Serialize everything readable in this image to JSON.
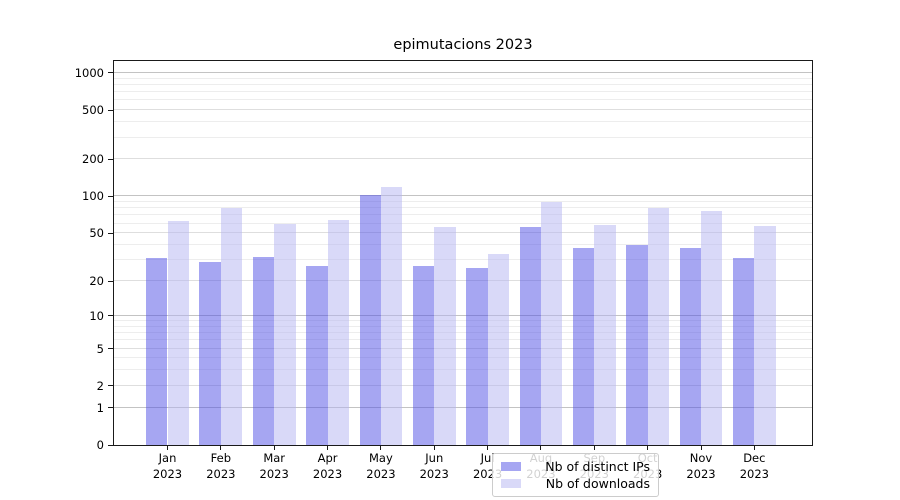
{
  "chart_data": {
    "type": "bar",
    "title": "epimutacions 2023",
    "categories": [
      "Jan 2023",
      "Feb 2023",
      "Mar 2023",
      "Apr 2023",
      "May 2023",
      "Jun 2023",
      "Jul 2023",
      "Aug 2023",
      "Sep 2023",
      "Oct 2023",
      "Nov 2023",
      "Dec 2023"
    ],
    "series": [
      {
        "name": "Nb of distinct IPs",
        "color": "#a6a6f2",
        "fill": "rgba(77,77,229,0.5)",
        "values": [
          31,
          29,
          32,
          27,
          103,
          27,
          26,
          56,
          38,
          40,
          38,
          31
        ]
      },
      {
        "name": "Nb of downloads",
        "color": "#d9d9f8",
        "fill": "rgba(179,179,241,0.5)",
        "values": [
          63,
          81,
          60,
          64,
          120,
          56,
          34,
          90,
          58,
          80,
          76,
          57
        ]
      }
    ],
    "yscale": "log1p",
    "ylim": [
      0,
      1270
    ],
    "yticks": [
      0,
      1,
      2,
      5,
      10,
      20,
      50,
      100,
      200,
      500,
      1000
    ],
    "minor_gridlines": [
      3,
      4,
      6,
      7,
      8,
      9,
      30,
      40,
      60,
      70,
      80,
      90,
      300,
      400,
      600,
      700,
      800,
      900
    ],
    "grid": true,
    "legend_position": "lower center"
  }
}
